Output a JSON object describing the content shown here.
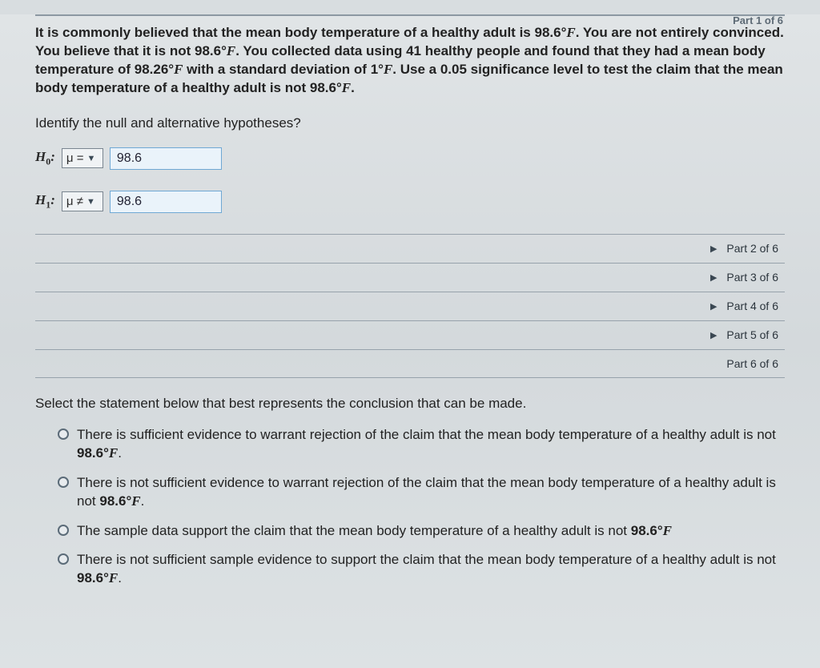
{
  "header": {
    "part_indicator": "Part 1 of 6"
  },
  "problem": {
    "text_html": "It is commonly believed that the mean body temperature of a healthy adult is <span class='deg'>98.6°<span class='serif'>F</span></span>. You are not entirely convinced. You believe that it is not <span class='deg'>98.6°<span class='serif'>F</span></span>. You collected data using 41 healthy people and found that they had a mean body temperature of <span class='deg'>98.26°<span class='serif'>F</span></span> with a standard deviation of <span class='deg'>1°<span class='serif'>F</span></span>. Use a 0.05 significance level to test the claim that the mean body temperature of a healthy adult is not <span class='deg'>98.6°<span class='serif'>F</span></span>."
  },
  "hypotheses": {
    "prompt": "Identify the null and alternative hypotheses?",
    "h0": {
      "label_html": "H<sub>0</sub>:",
      "operator": "μ =",
      "value": "98.6"
    },
    "h1": {
      "label_html": "H<sub>1</sub>:",
      "operator": "μ ≠",
      "value": "98.6"
    }
  },
  "parts": [
    {
      "label": "Part 2 of 6",
      "expandable": true
    },
    {
      "label": "Part 3 of 6",
      "expandable": true
    },
    {
      "label": "Part 4 of 6",
      "expandable": true
    },
    {
      "label": "Part 5 of 6",
      "expandable": true
    },
    {
      "label": "Part 6 of 6",
      "expandable": false
    }
  ],
  "conclusion": {
    "prompt": "Select the statement below that best represents the conclusion that can be made.",
    "options": [
      "There is sufficient evidence to warrant rejection of the claim that the mean body temperature of a healthy adult is not <span class='deg'>98.6°<span class='serif'>F</span></span>.",
      "There is not sufficient evidence to warrant rejection of the claim that the mean body temperature of a healthy adult is not <span class='deg'>98.6°<span class='serif'>F</span></span>.",
      "The sample data support the claim that the mean body temperature of a healthy adult is not <span class='deg'>98.6°<span class='serif'>F</span></span>",
      "There is not sufficient sample evidence to support the claim that the mean body temperature of a healthy adult is not <span class='deg'>98.6°<span class='serif'>F</span></span>."
    ]
  },
  "colors": {
    "page_bg": "#d8dde0",
    "rule": "#8c98a2",
    "select_border": "#7a8590",
    "value_border": "#6fa8d4",
    "value_bg": "#eaf3fa"
  }
}
